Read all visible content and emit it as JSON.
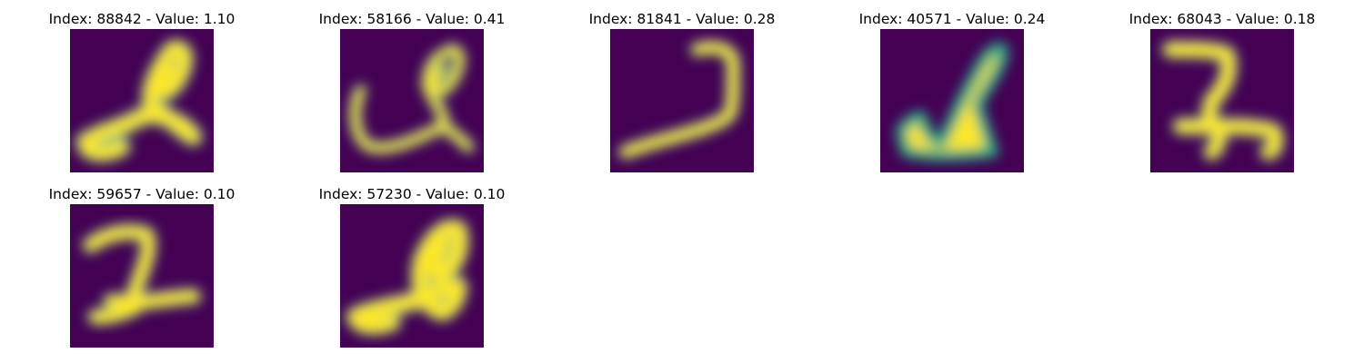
{
  "colors": {
    "background": "#440154",
    "stroke": "#fde725",
    "edge": "#22a884"
  },
  "panels": [
    {
      "title": "Index: 88842 - Value: 1.10"
    },
    {
      "title": "Index: 58166 - Value: 0.41"
    },
    {
      "title": "Index: 81841 - Value: 0.28"
    },
    {
      "title": "Index: 40571 - Value: 0.24"
    },
    {
      "title": "Index: 68043 - Value: 0.18"
    },
    {
      "title": "Index: 59657 - Value: 0.10"
    },
    {
      "title": "Index: 57230 - Value: 0.10"
    }
  ]
}
